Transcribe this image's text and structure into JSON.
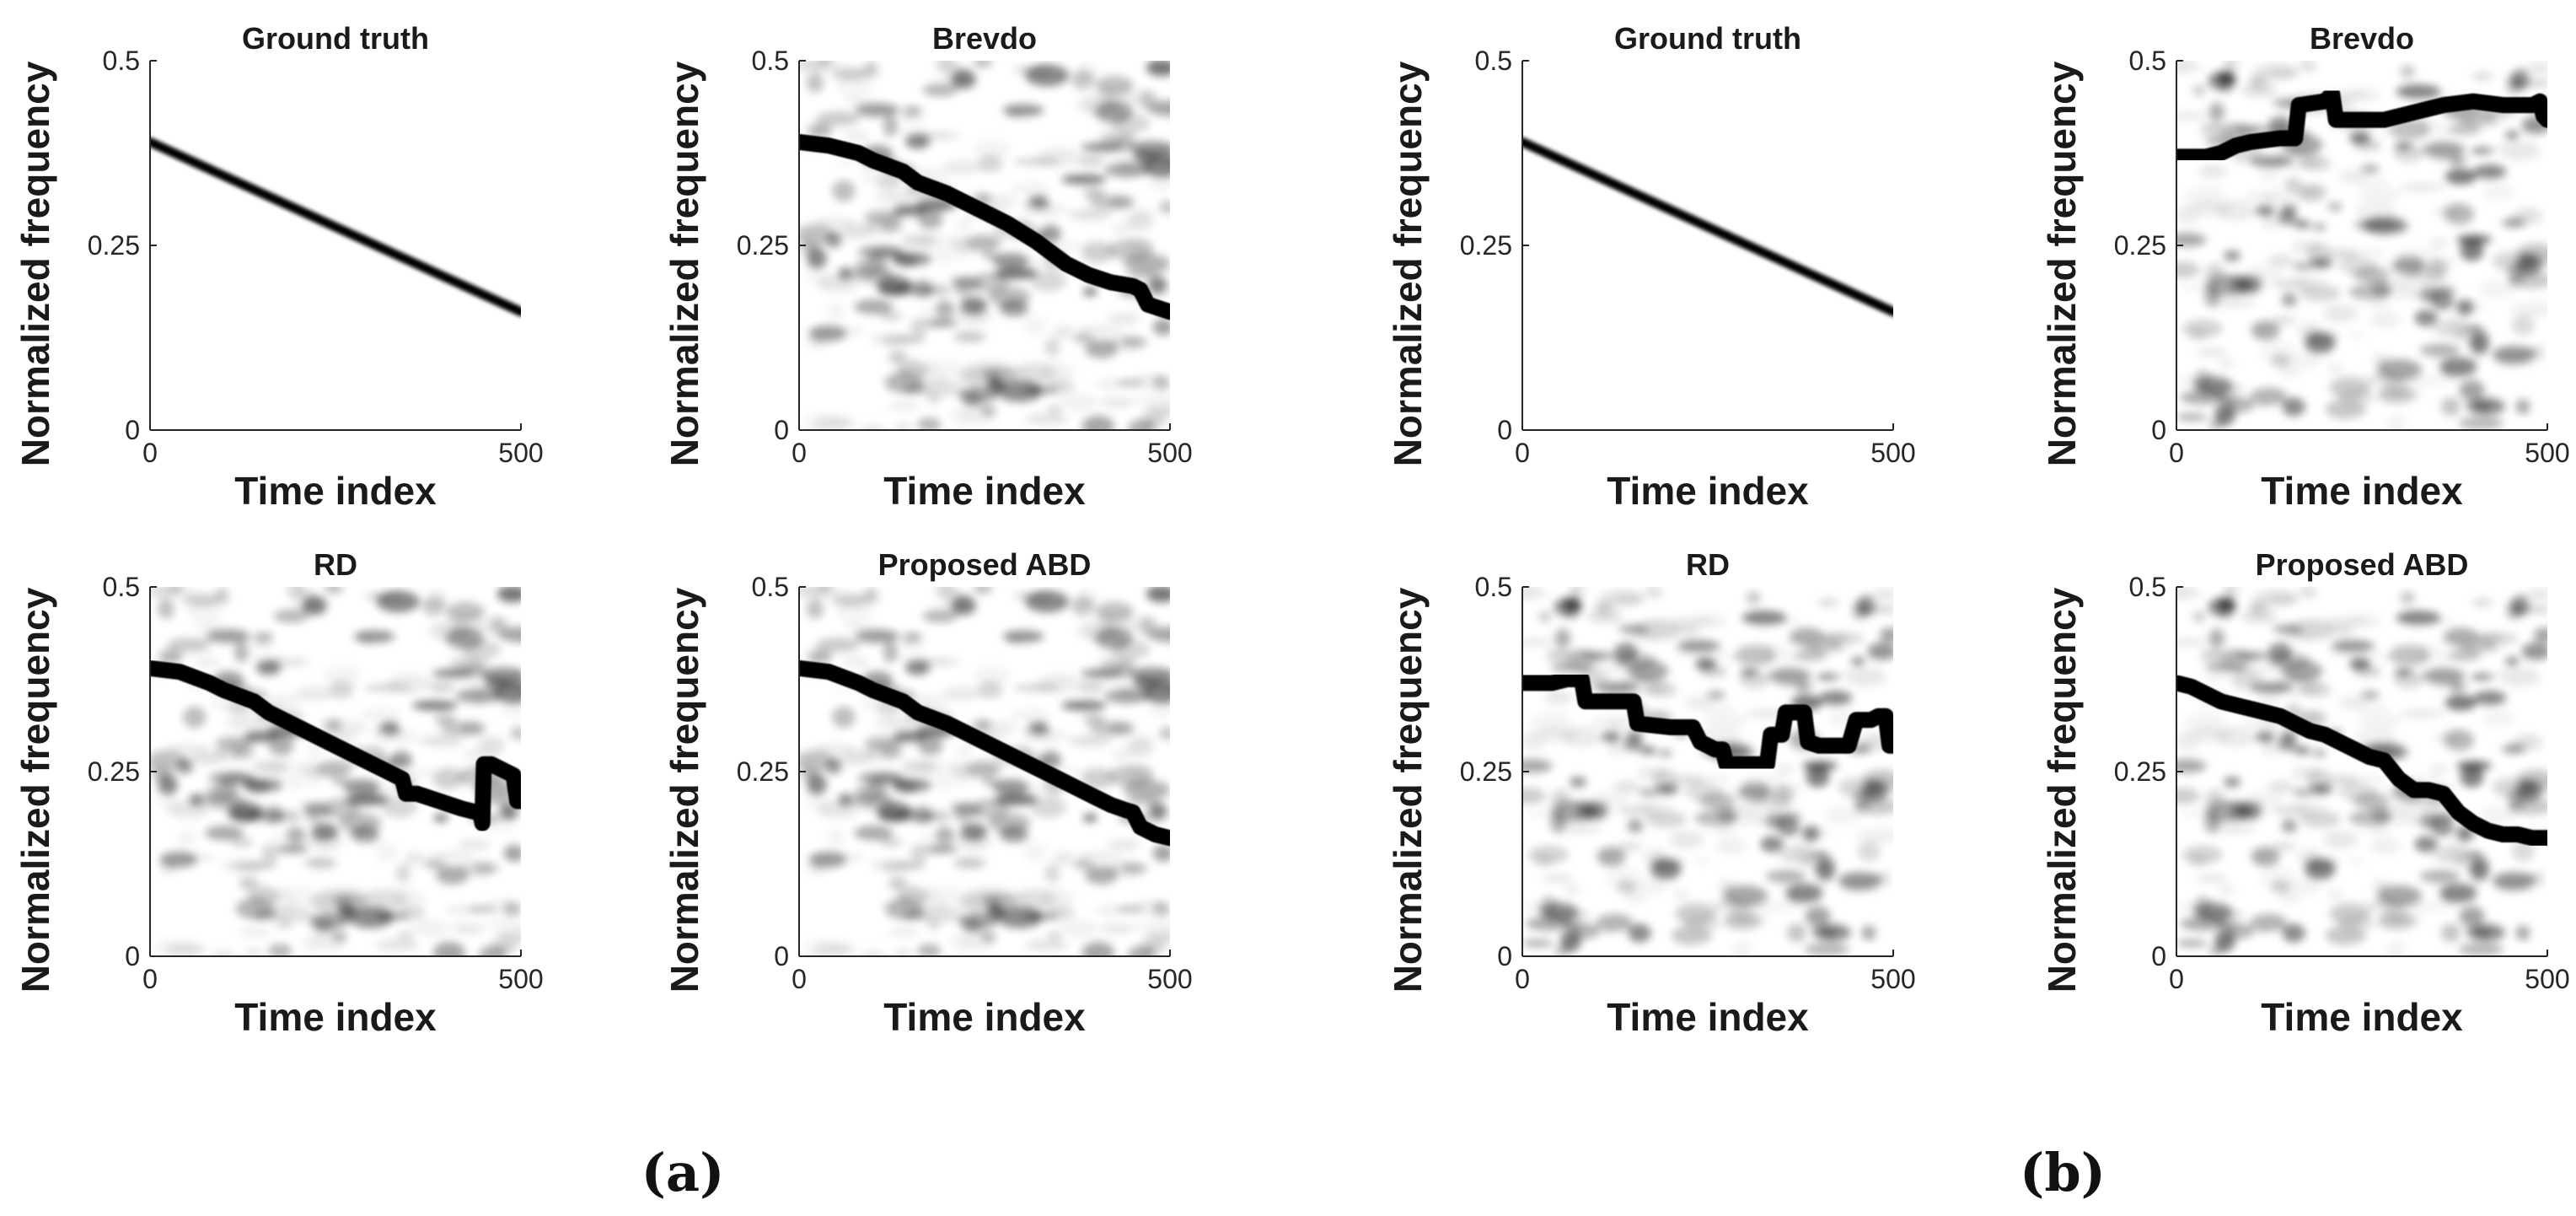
{
  "chart_data": [
    {
      "id": "a1",
      "group": "(a)",
      "type": "heatmap",
      "title": "Ground truth",
      "xlabel": "Time index",
      "ylabel": "Normalized frequency",
      "xlim": [
        0,
        500
      ],
      "ylim": [
        0,
        0.5
      ],
      "xticks": [
        0,
        500
      ],
      "xtick_labels": [
        "0",
        "500"
      ],
      "yticks": [
        0,
        0.25,
        0.5
      ],
      "ytick_labels": [
        "0",
        "0.25",
        "0.5"
      ],
      "background_noise": false,
      "track_style": "thin",
      "track": {
        "x": [
          0,
          500
        ],
        "y": [
          0.39,
          0.16
        ]
      }
    },
    {
      "id": "a2",
      "group": "(a)",
      "type": "heatmap",
      "title": "Brevdo",
      "xlabel": "Time index",
      "ylabel": "Normalized frequency",
      "xlim": [
        0,
        500
      ],
      "ylim": [
        0,
        0.5
      ],
      "xticks": [
        0,
        500
      ],
      "xtick_labels": [
        "0",
        "500"
      ],
      "yticks": [
        0,
        0.25,
        0.5
      ],
      "ytick_labels": [
        "0",
        "0.25",
        "0.5"
      ],
      "background_noise": true,
      "noise_seed": 11,
      "track_style": "thick",
      "track": {
        "x": [
          0,
          40,
          80,
          100,
          140,
          160,
          200,
          240,
          280,
          320,
          340,
          360,
          390,
          420,
          450,
          460,
          470,
          500
        ],
        "y": [
          0.39,
          0.385,
          0.375,
          0.365,
          0.35,
          0.335,
          0.32,
          0.3,
          0.28,
          0.255,
          0.24,
          0.225,
          0.21,
          0.2,
          0.195,
          0.19,
          0.17,
          0.16
        ]
      }
    },
    {
      "id": "a3",
      "group": "(a)",
      "type": "heatmap",
      "title": "RD",
      "xlabel": "Time index",
      "ylabel": "Normalized frequency",
      "xlim": [
        0,
        500
      ],
      "ylim": [
        0,
        0.5
      ],
      "xticks": [
        0,
        500
      ],
      "xtick_labels": [
        "0",
        "500"
      ],
      "yticks": [
        0,
        0.25,
        0.5
      ],
      "ytick_labels": [
        "0",
        "0.25",
        "0.5"
      ],
      "background_noise": true,
      "noise_seed": 11,
      "track_style": "thick",
      "track": {
        "x": [
          0,
          40,
          80,
          100,
          140,
          160,
          200,
          240,
          280,
          320,
          340,
          345,
          360,
          390,
          420,
          440,
          445,
          448,
          450,
          460,
          480,
          490,
          495,
          500
        ],
        "y": [
          0.39,
          0.385,
          0.37,
          0.36,
          0.345,
          0.33,
          0.31,
          0.29,
          0.27,
          0.25,
          0.24,
          0.22,
          0.22,
          0.21,
          0.2,
          0.195,
          0.195,
          0.18,
          0.26,
          0.26,
          0.25,
          0.245,
          0.21,
          0.21
        ]
      }
    },
    {
      "id": "a4",
      "group": "(a)",
      "type": "heatmap",
      "title": "Proposed ABD",
      "xlabel": "Time index",
      "ylabel": "Normalized frequency",
      "xlim": [
        0,
        500
      ],
      "ylim": [
        0,
        0.5
      ],
      "xticks": [
        0,
        500
      ],
      "xtick_labels": [
        "0",
        "500"
      ],
      "yticks": [
        0,
        0.25,
        0.5
      ],
      "ytick_labels": [
        "0",
        "0.25",
        "0.5"
      ],
      "background_noise": true,
      "noise_seed": 11,
      "track_style": "thick",
      "track": {
        "x": [
          0,
          40,
          80,
          100,
          140,
          160,
          200,
          240,
          280,
          320,
          360,
          400,
          420,
          440,
          450,
          460,
          480,
          500
        ],
        "y": [
          0.39,
          0.385,
          0.37,
          0.36,
          0.345,
          0.33,
          0.315,
          0.295,
          0.275,
          0.255,
          0.235,
          0.215,
          0.205,
          0.198,
          0.195,
          0.175,
          0.165,
          0.16
        ]
      }
    },
    {
      "id": "b1",
      "group": "(b)",
      "type": "heatmap",
      "title": "Ground truth",
      "xlabel": "Time index",
      "ylabel": "Normalized frequency",
      "xlim": [
        0,
        500
      ],
      "ylim": [
        0,
        0.5
      ],
      "xticks": [
        0,
        500
      ],
      "xtick_labels": [
        "0",
        "500"
      ],
      "yticks": [
        0,
        0.25,
        0.5
      ],
      "ytick_labels": [
        "0",
        "0.25",
        "0.5"
      ],
      "background_noise": false,
      "track_style": "thin",
      "track": {
        "x": [
          0,
          500
        ],
        "y": [
          0.39,
          0.16
        ]
      }
    },
    {
      "id": "b2",
      "group": "(b)",
      "type": "heatmap",
      "title": "Brevdo",
      "xlabel": "Time index",
      "ylabel": "Normalized frequency",
      "xlim": [
        0,
        500
      ],
      "ylim": [
        0,
        0.5
      ],
      "xticks": [
        0,
        500
      ],
      "xtick_labels": [
        "0",
        "500"
      ],
      "yticks": [
        0,
        0.25,
        0.5
      ],
      "ytick_labels": [
        "0",
        "0.25",
        "0.5"
      ],
      "background_noise": true,
      "noise_seed": 29,
      "track_style": "thick",
      "track": {
        "x": [
          0,
          40,
          60,
          80,
          100,
          140,
          160,
          165,
          200,
          210,
          215,
          240,
          280,
          320,
          360,
          400,
          440,
          460,
          480,
          490,
          495,
          500
        ],
        "y": [
          0.37,
          0.37,
          0.375,
          0.385,
          0.39,
          0.395,
          0.395,
          0.44,
          0.445,
          0.455,
          0.42,
          0.42,
          0.42,
          0.43,
          0.44,
          0.445,
          0.44,
          0.44,
          0.44,
          0.445,
          0.425,
          0.42
        ]
      }
    },
    {
      "id": "b3",
      "group": "(b)",
      "type": "heatmap",
      "title": "RD",
      "xlabel": "Time index",
      "ylabel": "Normalized frequency",
      "xlim": [
        0,
        500
      ],
      "ylim": [
        0,
        0.5
      ],
      "xticks": [
        0,
        500
      ],
      "xtick_labels": [
        "0",
        "500"
      ],
      "yticks": [
        0,
        0.25,
        0.5
      ],
      "ytick_labels": [
        "0",
        "0.25",
        "0.5"
      ],
      "background_noise": true,
      "noise_seed": 29,
      "track_style": "thick",
      "track": {
        "x": [
          0,
          40,
          60,
          80,
          85,
          120,
          150,
          155,
          200,
          230,
          240,
          260,
          270,
          275,
          300,
          330,
          335,
          350,
          355,
          380,
          385,
          400,
          420,
          440,
          450,
          460,
          470,
          480,
          490,
          495,
          500
        ],
        "y": [
          0.37,
          0.37,
          0.375,
          0.375,
          0.345,
          0.345,
          0.345,
          0.315,
          0.31,
          0.31,
          0.29,
          0.28,
          0.28,
          0.26,
          0.26,
          0.26,
          0.3,
          0.3,
          0.33,
          0.33,
          0.29,
          0.285,
          0.285,
          0.285,
          0.32,
          0.32,
          0.32,
          0.325,
          0.325,
          0.285,
          0.285
        ]
      }
    },
    {
      "id": "b4",
      "group": "(b)",
      "type": "heatmap",
      "title": "Proposed ABD",
      "xlabel": "Time index",
      "ylabel": "Normalized frequency",
      "xlim": [
        0,
        500
      ],
      "ylim": [
        0,
        0.5
      ],
      "xticks": [
        0,
        500
      ],
      "xtick_labels": [
        "0",
        "500"
      ],
      "yticks": [
        0,
        0.25,
        0.5
      ],
      "ytick_labels": [
        "0",
        "0.25",
        "0.5"
      ],
      "background_noise": true,
      "noise_seed": 29,
      "track_style": "thick",
      "track": {
        "x": [
          0,
          20,
          40,
          60,
          80,
          100,
          120,
          140,
          160,
          180,
          200,
          220,
          240,
          260,
          280,
          300,
          320,
          340,
          360,
          380,
          400,
          420,
          440,
          460,
          480,
          500
        ],
        "y": [
          0.37,
          0.365,
          0.355,
          0.345,
          0.34,
          0.335,
          0.33,
          0.325,
          0.315,
          0.305,
          0.3,
          0.29,
          0.28,
          0.27,
          0.265,
          0.24,
          0.225,
          0.225,
          0.22,
          0.195,
          0.18,
          0.17,
          0.165,
          0.165,
          0.16,
          0.16
        ]
      }
    }
  ],
  "panel_labels": [
    "(a)",
    "(b)"
  ]
}
